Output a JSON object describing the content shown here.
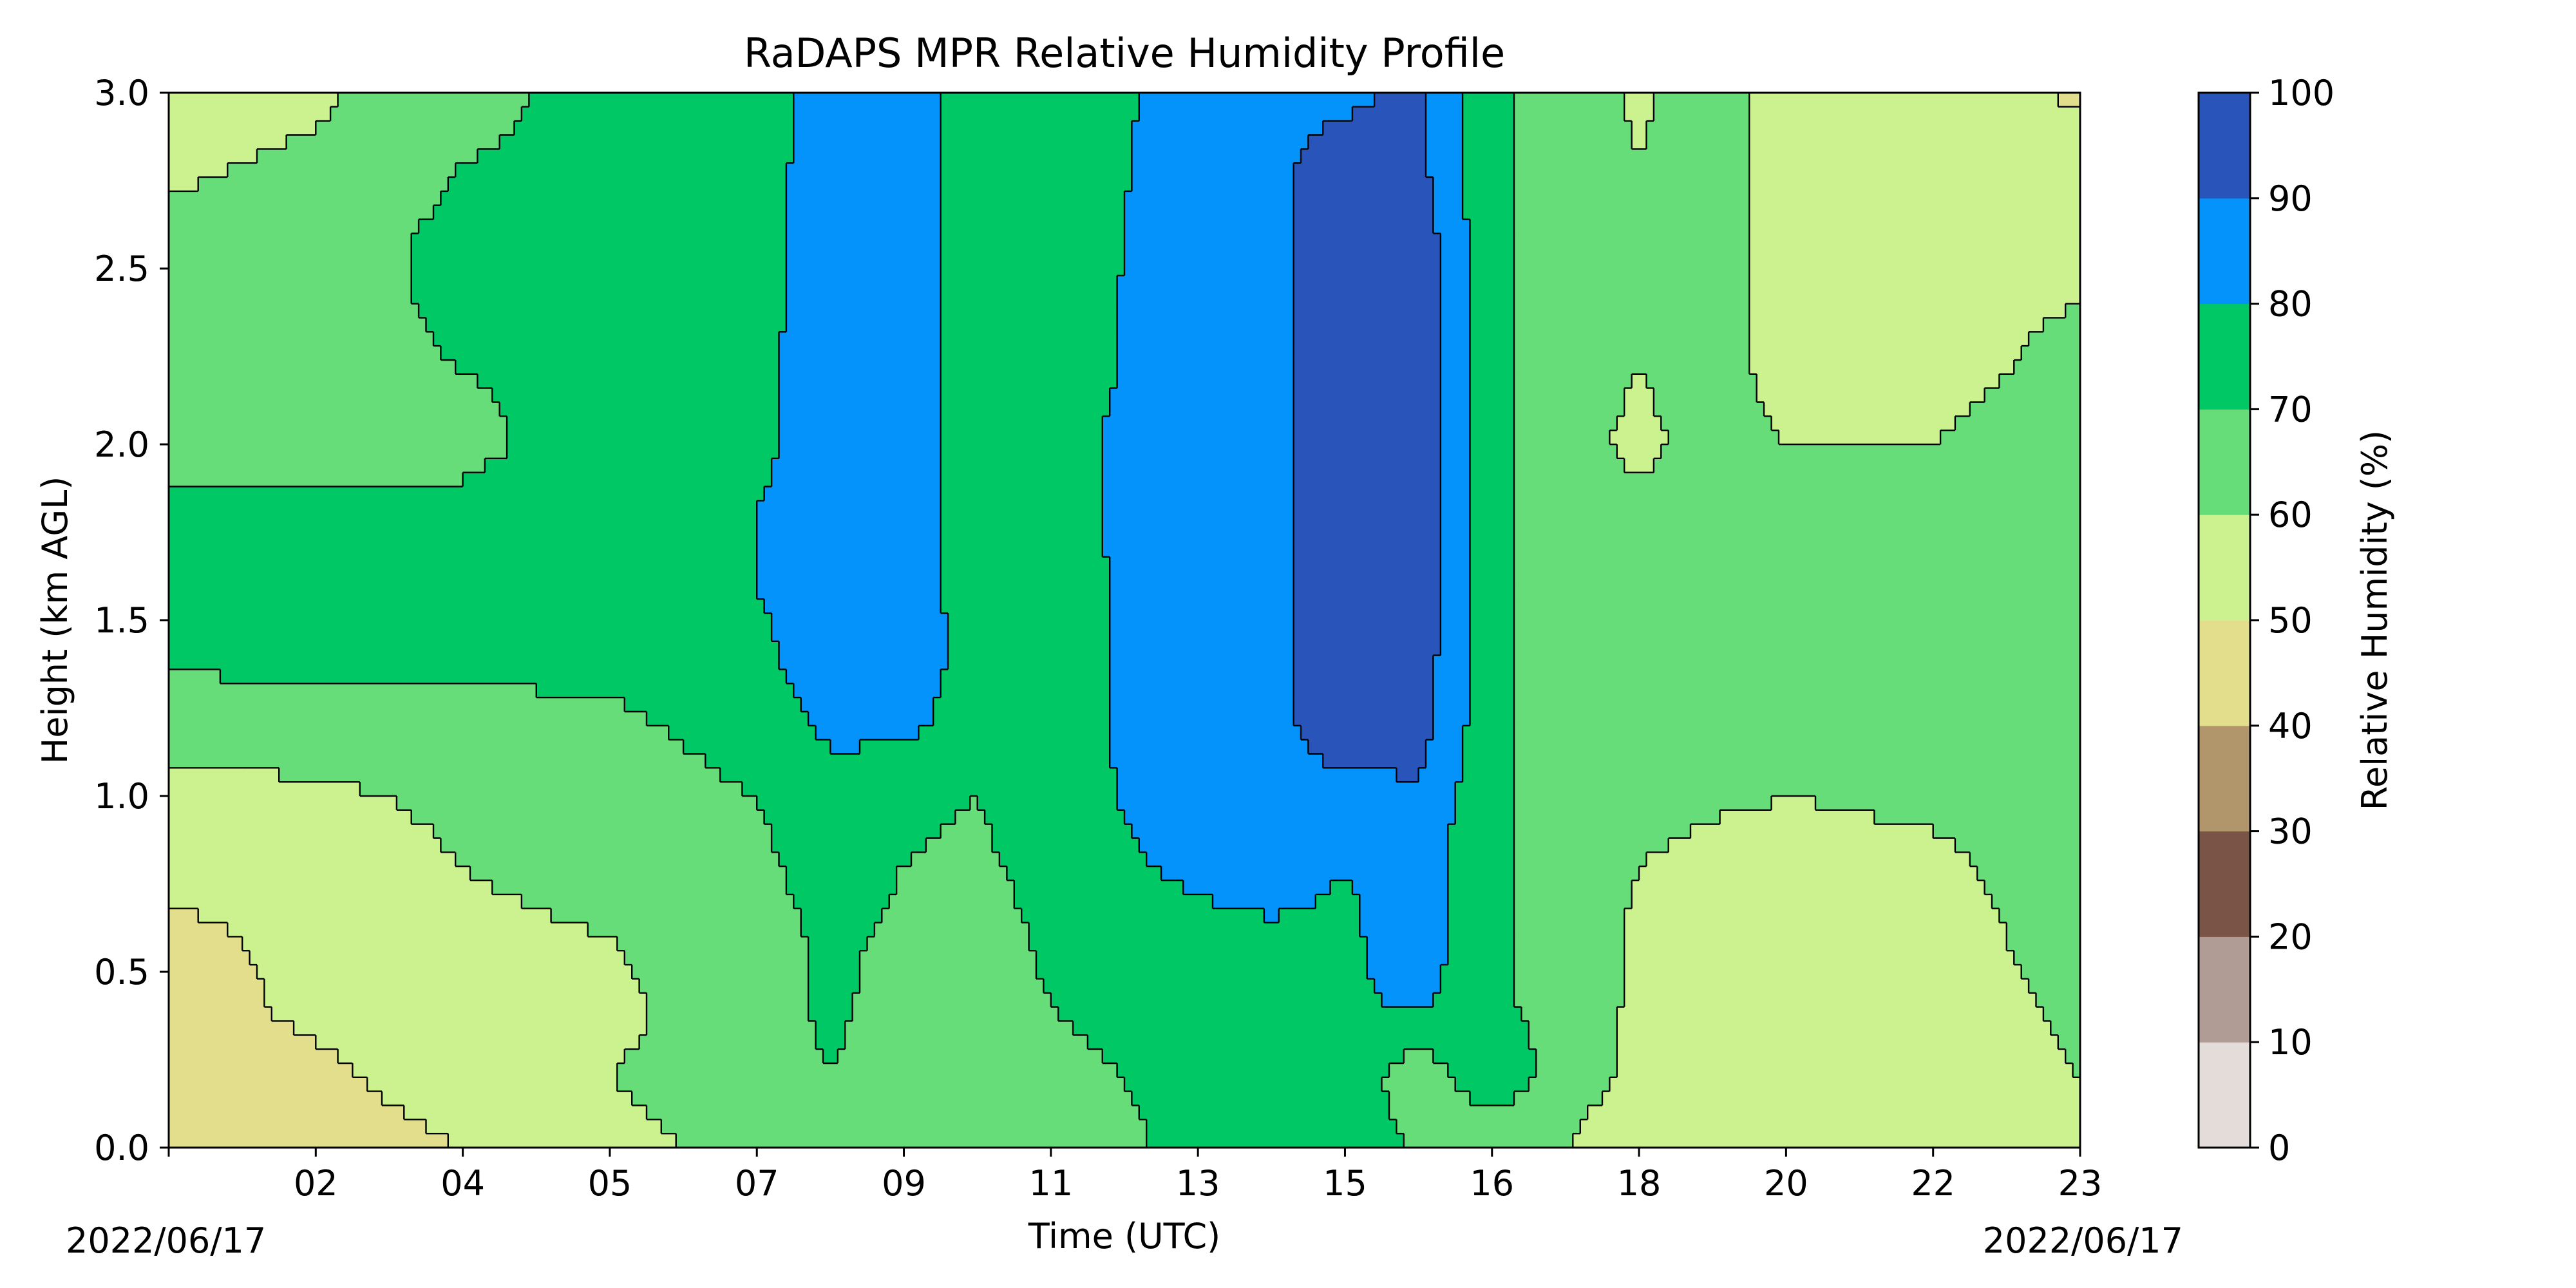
{
  "chart_data": {
    "type": "heatmap",
    "title": "RaDAPS MPR Relative Humidity Profile",
    "xlabel": "Time (UTC)",
    "ylabel": "Height (km AGL)",
    "x_ticks": [
      "02",
      "04",
      "05",
      "07",
      "09",
      "11",
      "13",
      "15",
      "16",
      "18",
      "20",
      "22",
      "23"
    ],
    "x_tick_hours": [
      2,
      4,
      6,
      8,
      10,
      12,
      14,
      16,
      18,
      20,
      22,
      24,
      26
    ],
    "xlim_hours": [
      0,
      26
    ],
    "date_left": "2022/06/17",
    "date_right": "2022/06/17",
    "y_ticks": [
      "0.0",
      "0.5",
      "1.0",
      "1.5",
      "2.0",
      "2.5",
      "3.0"
    ],
    "y_tick_values": [
      0,
      0.5,
      1.0,
      1.5,
      2.0,
      2.5,
      3.0
    ],
    "ylim": [
      0,
      3.0
    ],
    "colorbar": {
      "label": "Relative Humidity (%)",
      "ticks": [
        "0",
        "10",
        "20",
        "30",
        "40",
        "50",
        "60",
        "70",
        "80",
        "90",
        "100"
      ],
      "levels": [
        0,
        10,
        20,
        30,
        40,
        50,
        60,
        70,
        80,
        90,
        100
      ],
      "colors": [
        "#e4dcd9",
        "#b09c94",
        "#7a5446",
        "#b0966a",
        "#e3de8c",
        "#cbf28e",
        "#66dd78",
        "#00c865",
        "#0493fb",
        "#2955bb"
      ]
    },
    "height_km": [
      0.0,
      0.2,
      0.4,
      0.6,
      0.8,
      1.0,
      1.2,
      1.4,
      1.6,
      1.8,
      2.0,
      2.2,
      2.4,
      2.6,
      2.8,
      3.0
    ],
    "time_hours": [
      0,
      2,
      4,
      6,
      8,
      9,
      10,
      11,
      12,
      14,
      15,
      16,
      17,
      18,
      19,
      20,
      21,
      22,
      24,
      26
    ],
    "rh_percent": [
      [
        42,
        45,
        50,
        58,
        62,
        68,
        60,
        62,
        66,
        72,
        74,
        78,
        68,
        60,
        60,
        52,
        52,
        55,
        55,
        58
      ],
      [
        45,
        48,
        55,
        60,
        64,
        70,
        65,
        64,
        68,
        72,
        74,
        78,
        62,
        78,
        65,
        58,
        55,
        55,
        55,
        60
      ],
      [
        46,
        52,
        55,
        58,
        65,
        72,
        66,
        65,
        70,
        74,
        75,
        78,
        82,
        72,
        66,
        58,
        55,
        56,
        55,
        62
      ],
      [
        48,
        52,
        58,
        60,
        66,
        72,
        68,
        65,
        72,
        76,
        78,
        78,
        86,
        72,
        66,
        58,
        56,
        56,
        56,
        64
      ],
      [
        52,
        55,
        60,
        63,
        68,
        74,
        70,
        68,
        74,
        83,
        85,
        80,
        85,
        72,
        66,
        60,
        56,
        56,
        58,
        65
      ],
      [
        56,
        58,
        62,
        65,
        70,
        76,
        72,
        70,
        76,
        85,
        88,
        88,
        88,
        72,
        66,
        65,
        62,
        60,
        62,
        66
      ],
      [
        65,
        66,
        67,
        68,
        74,
        82,
        83,
        74,
        76,
        86,
        88,
        94,
        95,
        72,
        66,
        64,
        66,
        65,
        65,
        67
      ],
      [
        72,
        72,
        72,
        73,
        78,
        85,
        86,
        76,
        76,
        86,
        88,
        94,
        96,
        72,
        66,
        65,
        66,
        64,
        64,
        67
      ],
      [
        74,
        74,
        73,
        74,
        80,
        86,
        84,
        76,
        76,
        86,
        88,
        95,
        96,
        72,
        66,
        65,
        66,
        64,
        64,
        66
      ],
      [
        72,
        72,
        72,
        74,
        80,
        86,
        84,
        76,
        77,
        86,
        88,
        95,
        96,
        72,
        66,
        65,
        66,
        64,
        62,
        65
      ],
      [
        66,
        66,
        68,
        74,
        78,
        84,
        84,
        76,
        77,
        86,
        88,
        94,
        96,
        72,
        66,
        56,
        66,
        60,
        60,
        64
      ],
      [
        65,
        66,
        70,
        72,
        78,
        86,
        84,
        76,
        75,
        86,
        88,
        94,
        96,
        72,
        66,
        60,
        66,
        55,
        58,
        62
      ],
      [
        64,
        66,
        72,
        72,
        76,
        86,
        84,
        76,
        75,
        86,
        88,
        94,
        96,
        72,
        66,
        60,
        66,
        55,
        58,
        60
      ],
      [
        62,
        66,
        72,
        72,
        76,
        86,
        84,
        76,
        74,
        86,
        88,
        94,
        96,
        72,
        66,
        60,
        66,
        55,
        58,
        58
      ],
      [
        58,
        62,
        70,
        72,
        75,
        86,
        84,
        76,
        74,
        85,
        88,
        94,
        92,
        72,
        66,
        60,
        66,
        55,
        58,
        55
      ],
      [
        55,
        58,
        68,
        72,
        75,
        86,
        84,
        76,
        74,
        84,
        88,
        88,
        92,
        72,
        66,
        58,
        66,
        55,
        58,
        48
      ]
    ]
  }
}
